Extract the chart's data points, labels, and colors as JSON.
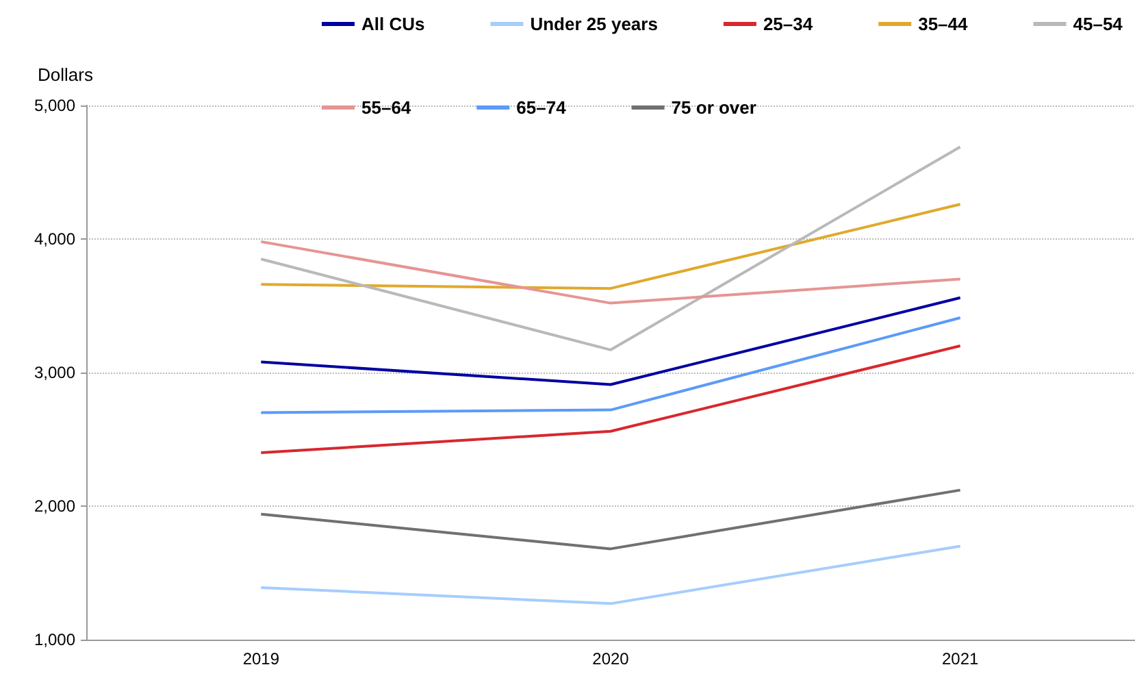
{
  "chart_data": {
    "type": "line",
    "ylabel": "Dollars",
    "categories": [
      "2019",
      "2020",
      "2021"
    ],
    "ylim": [
      1000,
      5000
    ],
    "yticks": [
      {
        "value": 1000,
        "label": "1,000"
      },
      {
        "value": 2000,
        "label": "2,000"
      },
      {
        "value": 3000,
        "label": "3,000"
      },
      {
        "value": 4000,
        "label": "4,000"
      },
      {
        "value": 5000,
        "label": "5,000"
      }
    ],
    "grid": "y",
    "legend": "top",
    "marker": "none",
    "line_style": "solid",
    "series": [
      {
        "name": "All CUs",
        "color": "#0000a0",
        "values": [
          3080,
          2910,
          3560
        ]
      },
      {
        "name": "Under 25 years",
        "color": "#a6cdfc",
        "values": [
          1390,
          1270,
          1700
        ]
      },
      {
        "name": "25–34",
        "color": "#d7282f",
        "values": [
          2400,
          2560,
          3200
        ]
      },
      {
        "name": "35–44",
        "color": "#e0a92d",
        "values": [
          3660,
          3630,
          4260
        ]
      },
      {
        "name": "45–54",
        "color": "#b9b9b9",
        "values": [
          3850,
          3170,
          4690
        ]
      },
      {
        "name": "55–64",
        "color": "#e59593",
        "values": [
          3980,
          3520,
          3700
        ]
      },
      {
        "name": "65–74",
        "color": "#5b9bf8",
        "values": [
          2700,
          2720,
          3410
        ]
      },
      {
        "name": "75 or over",
        "color": "#707070",
        "values": [
          1940,
          1680,
          2120
        ]
      }
    ]
  }
}
